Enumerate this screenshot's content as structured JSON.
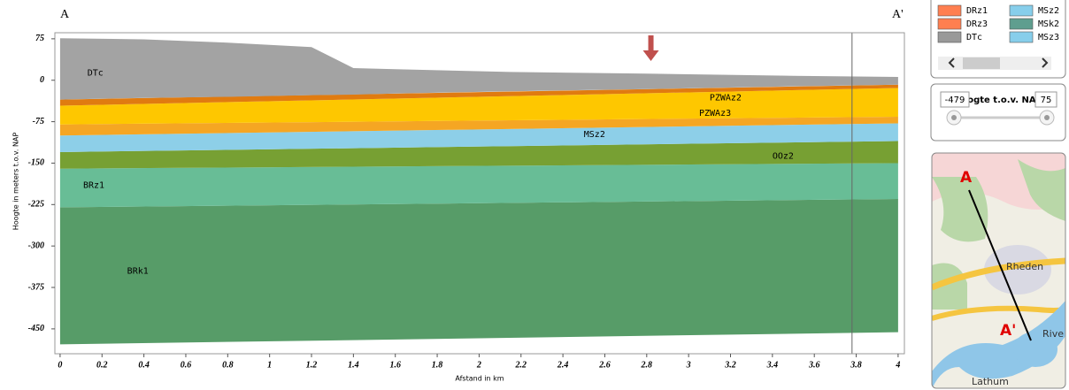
{
  "chart_data": {
    "type": "section",
    "corner_left": "A",
    "corner_right": "A'",
    "xlabel": "Afstand in km",
    "ylabel": "Hoogte in meters t.o.v. NAP",
    "xlim": [
      -0.025,
      4.03
    ],
    "ylim": [
      -495,
      86
    ],
    "xticks": [
      0,
      0.2,
      0.4,
      0.6,
      0.8,
      1,
      1.2,
      1.4,
      1.6,
      1.8,
      2,
      2.2,
      2.4,
      2.6,
      2.8,
      3,
      3.2,
      3.4,
      3.6,
      3.8,
      4
    ],
    "yticks": [
      75,
      0,
      -75,
      -150,
      -225,
      -300,
      -375,
      -450
    ],
    "series": [
      {
        "name": "BRk1",
        "color": "#579c68",
        "x": [
          0,
          4
        ],
        "top": [
          -230,
          -215
        ],
        "bottom": [
          -478,
          -456
        ]
      },
      {
        "name": "BRz1",
        "color": "#68bd96",
        "x": [
          0,
          4
        ],
        "top": [
          -160,
          -150
        ],
        "bottom": [
          -230,
          -215
        ]
      },
      {
        "name": "OOz2",
        "color": "#77a033",
        "x": [
          0,
          4
        ],
        "top": [
          -130,
          -110
        ],
        "bottom": [
          -160,
          -150
        ]
      },
      {
        "name": "MSz2",
        "color": "#8dcfe8",
        "x": [
          0,
          4
        ],
        "top": [
          -100,
          -78
        ],
        "bottom": [
          -130,
          -110
        ]
      },
      {
        "name": "PZWAz3",
        "color": "#f5a623",
        "x": [
          0,
          4
        ],
        "top": [
          -80,
          -66
        ],
        "bottom": [
          -100,
          -78
        ]
      },
      {
        "name": "PZWAz2",
        "color": "#fec700",
        "x": [
          0,
          4
        ],
        "top": [
          -46,
          -14
        ],
        "bottom": [
          -80,
          -66
        ]
      },
      {
        "name": "DRz1",
        "color": "#e07b10",
        "x": [
          0,
          4
        ],
        "top": [
          -35,
          -8
        ],
        "bottom": [
          -46,
          -14
        ]
      },
      {
        "name": "DTc",
        "color": "#a3a3a3",
        "x": [
          0,
          0.4,
          0.8,
          1.2,
          1.4,
          1.6,
          2.15,
          2.8,
          3.5,
          4
        ],
        "top": [
          76,
          74,
          68,
          60,
          22,
          20,
          15,
          12,
          8,
          6
        ],
        "bottom": [
          -35,
          -32,
          -30,
          -27,
          -26,
          -24,
          -20,
          -16,
          -11,
          -8
        ]
      }
    ]
  },
  "legend": {
    "items": [
      {
        "name": "DRz1",
        "color": "#ff7f50"
      },
      {
        "name": "DRz3",
        "color": "#ff7f50"
      },
      {
        "name": "DTc",
        "color": "#999999"
      },
      {
        "name": "MSz2",
        "color": "#87ceeb"
      },
      {
        "name": "MSk2",
        "color": "#5f9e8f"
      },
      {
        "name": "MSz3",
        "color": "#87ceeb"
      }
    ]
  },
  "slider": {
    "label": "Hoogte t.o.v. NAP",
    "min_text": "-479",
    "max_text": "75"
  },
  "map": {
    "start": "A",
    "end": "A'",
    "places": [
      "Rheden",
      "Rive",
      "Lathum"
    ]
  }
}
